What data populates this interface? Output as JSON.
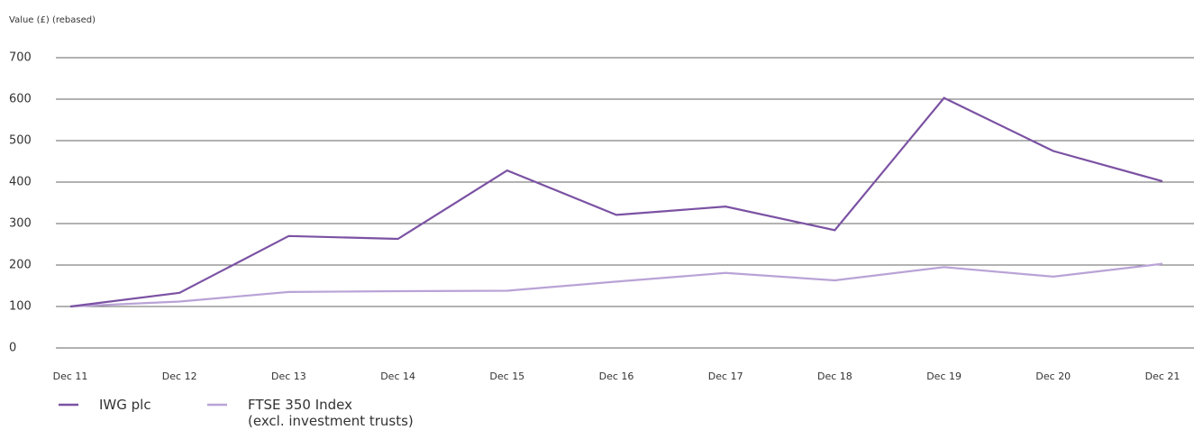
{
  "chart_data": {
    "type": "line",
    "ylabel": "Value (£) (rebased)",
    "categories": [
      "Dec 11",
      "Dec 12",
      "Dec 13",
      "Dec 14",
      "Dec 15",
      "Dec 16",
      "Dec 17",
      "Dec 18",
      "Dec 19",
      "Dec 20",
      "Dec 21"
    ],
    "series": [
      {
        "name": "IWG plc",
        "color": "#7b52a3",
        "values": [
          100,
          133,
          270,
          263,
          428,
          321,
          341,
          284,
          603,
          475,
          402
        ]
      },
      {
        "name": "FTSE 350 Index\n(excl. investment trusts)",
        "color": "#b9a3d6",
        "values": [
          100,
          112,
          135,
          137,
          138,
          160,
          181,
          163,
          195,
          172,
          203
        ]
      }
    ],
    "ylim": [
      0,
      700
    ],
    "yticks": [
      0,
      100,
      200,
      300,
      400,
      500,
      600,
      700
    ],
    "grid": true
  }
}
